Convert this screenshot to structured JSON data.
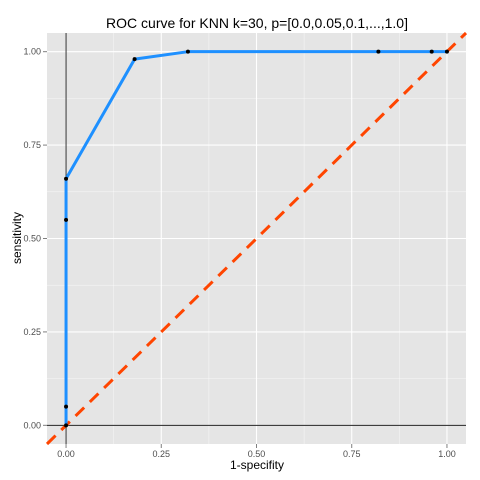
{
  "chart_data": {
    "type": "line",
    "title": "ROC curve for KNN k=30, p=[0.0,0.05,0.1,...,1.0]",
    "xlabel": "1-specifity",
    "ylabel": "sensitivity",
    "xlim": [
      -0.05,
      1.05
    ],
    "ylim": [
      -0.05,
      1.05
    ],
    "x_ticks": [
      {
        "value": 0.0,
        "label": "0.00"
      },
      {
        "value": 0.25,
        "label": "0.25"
      },
      {
        "value": 0.5,
        "label": "0.50"
      },
      {
        "value": 0.75,
        "label": "0.75"
      },
      {
        "value": 1.0,
        "label": "1.00"
      }
    ],
    "y_ticks": [
      {
        "value": 0.0,
        "label": "0.00"
      },
      {
        "value": 0.25,
        "label": "0.25"
      },
      {
        "value": 0.5,
        "label": "0.50"
      },
      {
        "value": 0.75,
        "label": "0.75"
      },
      {
        "value": 1.0,
        "label": "1.00"
      }
    ],
    "grid": true,
    "background": "#e5e5e5",
    "grid_color": "#ffffff",
    "series": [
      {
        "color": "#1e90ff",
        "line_style": "solid",
        "points": [
          {
            "x": 0.0,
            "y": 0.0
          },
          {
            "x": 0.0,
            "y": 0.05
          },
          {
            "x": 0.0,
            "y": 0.55
          },
          {
            "x": 0.0,
            "y": 0.66
          },
          {
            "x": 0.18,
            "y": 0.98
          },
          {
            "x": 0.32,
            "y": 1.0
          },
          {
            "x": 0.82,
            "y": 1.0
          },
          {
            "x": 0.96,
            "y": 1.0
          },
          {
            "x": 1.0,
            "y": 1.0
          }
        ]
      }
    ],
    "reference_line": {
      "color": "#ff4500",
      "line_style": "dashed",
      "from": {
        "x": -0.05,
        "y": -0.05
      },
      "to": {
        "x": 1.05,
        "y": 1.05
      }
    },
    "zero_lines": {
      "x": 0.0,
      "y": 0.0,
      "color": "#000000"
    }
  }
}
